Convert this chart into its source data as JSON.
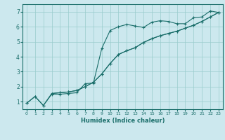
{
  "xlabel": "Humidex (Indice chaleur)",
  "bg_color": "#cce8ee",
  "line_color": "#1a6e6a",
  "grid_color": "#99cccc",
  "xlim": [
    -0.5,
    23.5
  ],
  "ylim": [
    0.5,
    7.5
  ],
  "xticks": [
    0,
    1,
    2,
    3,
    4,
    5,
    6,
    7,
    8,
    9,
    10,
    11,
    12,
    13,
    14,
    15,
    16,
    17,
    18,
    19,
    20,
    21,
    22,
    23
  ],
  "yticks": [
    1,
    2,
    3,
    4,
    5,
    6,
    7
  ],
  "curve1_x": [
    0,
    1,
    2,
    3,
    4,
    5,
    6,
    7,
    8,
    9,
    10,
    11,
    12,
    13,
    14,
    15,
    16,
    17,
    18,
    19,
    20,
    21,
    22,
    23
  ],
  "curve1_y": [
    0.9,
    1.35,
    0.75,
    1.5,
    1.5,
    1.55,
    1.6,
    2.2,
    2.25,
    4.55,
    5.75,
    6.0,
    6.15,
    6.05,
    5.95,
    6.3,
    6.4,
    6.35,
    6.2,
    6.2,
    6.6,
    6.65,
    7.05,
    6.95
  ],
  "curve2_x": [
    0,
    1,
    2,
    3,
    4,
    5,
    6,
    7,
    8,
    9,
    10,
    11,
    12,
    13,
    14,
    15,
    16,
    17,
    18,
    19,
    20,
    21,
    22,
    23
  ],
  "curve2_y": [
    0.9,
    1.35,
    0.75,
    1.55,
    1.6,
    1.65,
    1.75,
    2.0,
    2.3,
    2.85,
    3.55,
    4.15,
    4.4,
    4.6,
    4.95,
    5.2,
    5.4,
    5.55,
    5.7,
    5.9,
    6.1,
    6.35,
    6.65,
    6.95
  ],
  "curve3_x": [
    3,
    4,
    5,
    6,
    7,
    8,
    9,
    10,
    11,
    12,
    13,
    14,
    15,
    16,
    17,
    18,
    19,
    20,
    21,
    22,
    23
  ],
  "curve3_y": [
    1.55,
    1.6,
    1.65,
    1.75,
    2.0,
    2.3,
    2.85,
    3.55,
    4.15,
    4.4,
    4.6,
    4.95,
    5.2,
    5.4,
    5.55,
    5.7,
    5.9,
    6.1,
    6.35,
    6.65,
    6.95
  ]
}
